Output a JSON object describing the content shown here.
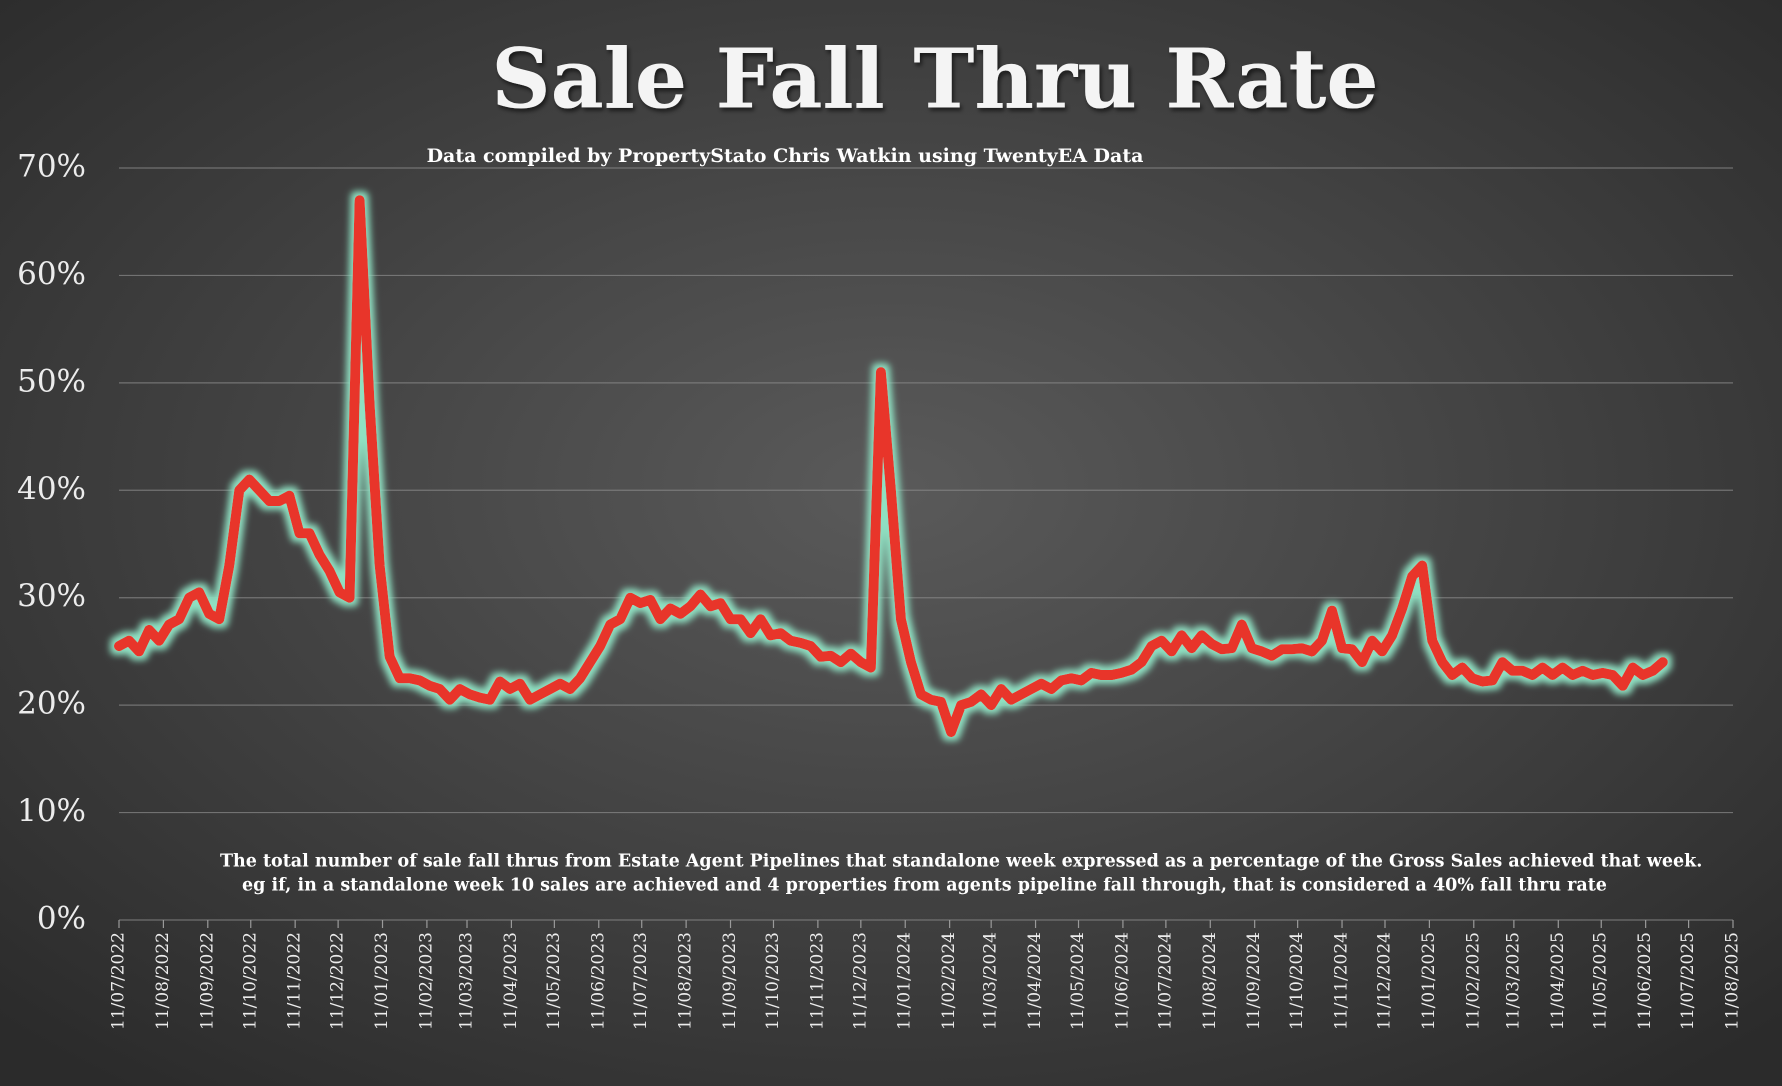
{
  "chart_data": {
    "type": "line",
    "title": "Sale Fall Thru Rate",
    "subtitle": "Data compiled by PropertyStato Chris Watkin using TwentyEA Data",
    "annotations": [
      "The total number of sale fall thrus from Estate Agent Pipelines that standalone week expressed as a percentage of the Gross Sales achieved that week.",
      "eg if, in a standalone week 10 sales are achieved and 4 properties from agents pipeline fall through, that is considered a 40%  fall thru rate"
    ],
    "color": "#e8352a",
    "glow_color": "#8fe0c2",
    "grid": true,
    "x": [
      "2022-07-11",
      "2022-07-18",
      "2022-07-25",
      "2022-08-01",
      "2022-08-08",
      "2022-08-15",
      "2022-08-22",
      "2022-08-29",
      "2022-09-05",
      "2022-09-12",
      "2022-09-19",
      "2022-09-26",
      "2022-10-03",
      "2022-10-10",
      "2022-10-17",
      "2022-10-24",
      "2022-10-31",
      "2022-11-07",
      "2022-11-14",
      "2022-11-21",
      "2022-11-28",
      "2022-12-05",
      "2022-12-12",
      "2022-12-19",
      "2022-12-26",
      "2023-01-02",
      "2023-01-09",
      "2023-01-16",
      "2023-01-23",
      "2023-01-30",
      "2023-02-06",
      "2023-02-13",
      "2023-02-20",
      "2023-02-27",
      "2023-03-06",
      "2023-03-13",
      "2023-03-20",
      "2023-03-27",
      "2023-04-03",
      "2023-04-10",
      "2023-04-17",
      "2023-04-24",
      "2023-05-01",
      "2023-05-08",
      "2023-05-15",
      "2023-05-22",
      "2023-05-29",
      "2023-06-05",
      "2023-06-12",
      "2023-06-19",
      "2023-06-26",
      "2023-07-03",
      "2023-07-10",
      "2023-07-17",
      "2023-07-24",
      "2023-07-31",
      "2023-08-07",
      "2023-08-14",
      "2023-08-21",
      "2023-08-28",
      "2023-09-04",
      "2023-09-11",
      "2023-09-18",
      "2023-09-25",
      "2023-10-02",
      "2023-10-09",
      "2023-10-16",
      "2023-10-23",
      "2023-10-30",
      "2023-11-06",
      "2023-11-13",
      "2023-11-20",
      "2023-11-27",
      "2023-12-04",
      "2023-12-11",
      "2023-12-18",
      "2023-12-25",
      "2024-01-01",
      "2024-01-08",
      "2024-01-15",
      "2024-01-22",
      "2024-01-29",
      "2024-02-05",
      "2024-02-12",
      "2024-02-19",
      "2024-02-26",
      "2024-03-04",
      "2024-03-11",
      "2024-03-18",
      "2024-03-25",
      "2024-04-01",
      "2024-04-08",
      "2024-04-15",
      "2024-04-22",
      "2024-04-29",
      "2024-05-06",
      "2024-05-13",
      "2024-05-20",
      "2024-05-27",
      "2024-06-03",
      "2024-06-10",
      "2024-06-17",
      "2024-06-24",
      "2024-07-01",
      "2024-07-08",
      "2024-07-15",
      "2024-07-22",
      "2024-07-29",
      "2024-08-05",
      "2024-08-12",
      "2024-08-19",
      "2024-08-26",
      "2024-09-02",
      "2024-09-09",
      "2024-09-16",
      "2024-09-23",
      "2024-09-30",
      "2024-10-07",
      "2024-10-14",
      "2024-10-21",
      "2024-10-28",
      "2024-11-04",
      "2024-11-11",
      "2024-11-18",
      "2024-11-25",
      "2024-12-02",
      "2024-12-09",
      "2024-12-16",
      "2024-12-23",
      "2024-12-30",
      "2025-01-06",
      "2025-01-13",
      "2025-01-20",
      "2025-01-27",
      "2025-02-03",
      "2025-02-10",
      "2025-02-17",
      "2025-02-24",
      "2025-03-03",
      "2025-03-10",
      "2025-03-17",
      "2025-03-24",
      "2025-03-31",
      "2025-04-07",
      "2025-04-14",
      "2025-04-21",
      "2025-04-28",
      "2025-05-05",
      "2025-05-12",
      "2025-05-19",
      "2025-05-26",
      "2025-06-02",
      "2025-06-09",
      "2025-06-16",
      "2025-06-23"
    ],
    "values": [
      25.5,
      26,
      25,
      27,
      26,
      27.5,
      28,
      30,
      30.5,
      28.5,
      28,
      33,
      40,
      41,
      40,
      39,
      39,
      39.5,
      36,
      36,
      34,
      32.5,
      30.5,
      30,
      67,
      48,
      33,
      24.5,
      22.5,
      22.5,
      22.3,
      21.8,
      21.5,
      20.5,
      21.5,
      21,
      20.7,
      20.5,
      22.2,
      21.5,
      22,
      20.5,
      21,
      21.5,
      22,
      21.5,
      22.5,
      24,
      25.5,
      27.5,
      28,
      30,
      29.5,
      29.8,
      28,
      29,
      28.5,
      29.2,
      30.3,
      29.2,
      29.5,
      28,
      28,
      26.7,
      28,
      26.5,
      26.7,
      26,
      25.8,
      25.5,
      24.5,
      24.6,
      24,
      24.8,
      24,
      23.5,
      51,
      40,
      28,
      24,
      21,
      20.5,
      20.3,
      17.5,
      20,
      20.3,
      21,
      20,
      21.5,
      20.5,
      21,
      21.5,
      22,
      21.5,
      22.3,
      22.5,
      22.3,
      23,
      22.8,
      22.8,
      23,
      23.3,
      24,
      25.5,
      26,
      25,
      26.5,
      25.3,
      26.5,
      25.7,
      25.2,
      25.3,
      27.5,
      25.3,
      25,
      24.6,
      25.2,
      25.2,
      25.3,
      25,
      26,
      28.8,
      25.3,
      25.2,
      24,
      26,
      25,
      26.5,
      29,
      32,
      33,
      26,
      24,
      22.8,
      23.5,
      22.5,
      22.2,
      22.3,
      24,
      23.2,
      23.2,
      22.8,
      23.5,
      22.8,
      23.5,
      22.8,
      23.2,
      22.8,
      23,
      22.8,
      21.8,
      23.5,
      22.8,
      23.2,
      24
    ],
    "xlim": [
      "2022-07-11",
      "2025-08-11"
    ],
    "xticks": [
      {
        "value": "2022-07-11",
        "label": "11/07/2022"
      },
      {
        "value": "2022-08-11",
        "label": "11/08/2022"
      },
      {
        "value": "2022-09-11",
        "label": "11/09/2022"
      },
      {
        "value": "2022-10-11",
        "label": "11/10/2022"
      },
      {
        "value": "2022-11-11",
        "label": "11/11/2022"
      },
      {
        "value": "2022-12-11",
        "label": "11/12/2022"
      },
      {
        "value": "2023-01-11",
        "label": "11/01/2023"
      },
      {
        "value": "2023-02-11",
        "label": "11/02/2023"
      },
      {
        "value": "2023-03-11",
        "label": "11/03/2023"
      },
      {
        "value": "2023-04-11",
        "label": "11/04/2023"
      },
      {
        "value": "2023-05-11",
        "label": "11/05/2023"
      },
      {
        "value": "2023-06-11",
        "label": "11/06/2023"
      },
      {
        "value": "2023-07-11",
        "label": "11/07/2023"
      },
      {
        "value": "2023-08-11",
        "label": "11/08/2023"
      },
      {
        "value": "2023-09-11",
        "label": "11/09/2023"
      },
      {
        "value": "2023-10-11",
        "label": "11/10/2023"
      },
      {
        "value": "2023-11-11",
        "label": "11/11/2023"
      },
      {
        "value": "2023-12-11",
        "label": "11/12/2023"
      },
      {
        "value": "2024-01-11",
        "label": "11/01/2024"
      },
      {
        "value": "2024-02-11",
        "label": "11/02/2024"
      },
      {
        "value": "2024-03-11",
        "label": "11/03/2024"
      },
      {
        "value": "2024-04-11",
        "label": "11/04/2024"
      },
      {
        "value": "2024-05-11",
        "label": "11/05/2024"
      },
      {
        "value": "2024-06-11",
        "label": "11/06/2024"
      },
      {
        "value": "2024-07-11",
        "label": "11/07/2024"
      },
      {
        "value": "2024-08-11",
        "label": "11/08/2024"
      },
      {
        "value": "2024-09-11",
        "label": "11/09/2024"
      },
      {
        "value": "2024-10-11",
        "label": "11/10/2024"
      },
      {
        "value": "2024-11-11",
        "label": "11/11/2024"
      },
      {
        "value": "2024-12-11",
        "label": "11/12/2024"
      },
      {
        "value": "2025-01-11",
        "label": "11/01/2025"
      },
      {
        "value": "2025-02-11",
        "label": "11/02/2025"
      },
      {
        "value": "2025-03-11",
        "label": "11/03/2025"
      },
      {
        "value": "2025-04-11",
        "label": "11/04/2025"
      },
      {
        "value": "2025-05-11",
        "label": "11/05/2025"
      },
      {
        "value": "2025-06-11",
        "label": "11/06/2025"
      },
      {
        "value": "2025-07-11",
        "label": "11/07/2025"
      },
      {
        "value": "2025-08-11",
        "label": "11/08/2025"
      }
    ],
    "ylim": [
      0,
      70
    ],
    "yticks": [
      {
        "value": 0,
        "label": "0%"
      },
      {
        "value": 10,
        "label": "10%"
      },
      {
        "value": 20,
        "label": "20%"
      },
      {
        "value": 30,
        "label": "30%"
      },
      {
        "value": 40,
        "label": "40%"
      },
      {
        "value": 50,
        "label": "50%"
      },
      {
        "value": 60,
        "label": "60%"
      },
      {
        "value": 70,
        "label": "70%"
      }
    ]
  }
}
